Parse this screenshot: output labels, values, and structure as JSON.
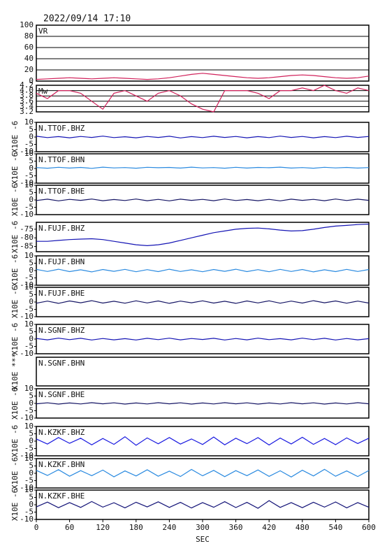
{
  "chart_data": {
    "type": "line",
    "title": "2022/09/14  17:10",
    "xlabel": "SEC",
    "xlim": [
      0,
      600
    ],
    "xticks": [
      0,
      60,
      120,
      180,
      240,
      300,
      360,
      420,
      480,
      540,
      600
    ],
    "x": [
      0,
      20,
      40,
      60,
      80,
      100,
      120,
      140,
      160,
      180,
      200,
      220,
      240,
      260,
      280,
      300,
      320,
      340,
      360,
      380,
      400,
      420,
      440,
      460,
      480,
      500,
      520,
      540,
      560,
      580,
      600
    ],
    "panels": [
      {
        "name": "VR",
        "color": "#d0205a",
        "grid": true,
        "ylim": [
          0,
          100
        ],
        "yticks": [
          0,
          20,
          40,
          60,
          80,
          100
        ],
        "values": [
          3,
          4,
          5,
          6,
          5,
          4,
          5,
          6,
          5,
          4,
          3,
          4,
          6,
          9,
          12,
          14,
          12,
          10,
          8,
          6,
          5,
          6,
          8,
          10,
          11,
          10,
          8,
          6,
          5,
          6,
          9
        ]
      },
      {
        "name": "Mw",
        "color": "#d0205a",
        "grid": true,
        "ylim": [
          3.2,
          4.2
        ],
        "yticks": [
          {
            "value": 3.2,
            "label": "3.2"
          },
          3.4,
          3.6,
          3.8,
          {
            "value": 4.0,
            "label": "4.0"
          },
          4.2
        ],
        "values": [
          3.9,
          3.7,
          4.0,
          4.0,
          3.9,
          3.6,
          3.3,
          3.9,
          4.0,
          3.8,
          3.6,
          3.9,
          4.0,
          3.8,
          3.5,
          3.3,
          3.2,
          4.0,
          4.0,
          4.0,
          3.9,
          3.7,
          4.0,
          4.0,
          4.1,
          4.0,
          4.2,
          4.0,
          3.9,
          4.1,
          4.0
        ]
      },
      {
        "name": "N.TTOF.BHZ",
        "ylabel": "X10E -6",
        "color": "#1414b4",
        "grid": false,
        "ylim": [
          -10,
          10
        ],
        "yticks": [
          -10,
          -5,
          0,
          5,
          10
        ],
        "values": [
          0.5,
          -0.4,
          0.3,
          -0.5,
          0.4,
          -0.3,
          0.6,
          -0.4,
          0.2,
          -0.5,
          0.4,
          -0.3,
          0.5,
          -0.6,
          0.3,
          -0.4,
          0.5,
          -0.3,
          0.4,
          -0.5,
          0.3,
          -0.4,
          0.6,
          -0.3,
          0.4,
          -0.5,
          0.3,
          -0.4,
          0.5,
          -0.3,
          0.4
        ]
      },
      {
        "name": "N.TTOF.BHN",
        "ylabel": "X10E -6",
        "color": "#2a8ae0",
        "grid": false,
        "ylim": [
          -10,
          10
        ],
        "yticks": [
          -10,
          -5,
          0,
          5,
          10
        ],
        "values": [
          0.6,
          0.2,
          0.8,
          0.3,
          0.7,
          0.1,
          0.9,
          0.4,
          0.6,
          0.2,
          0.8,
          0.5,
          0.7,
          0.3,
          0.9,
          0.4,
          0.6,
          0.2,
          0.8,
          0.3,
          0.7,
          0.5,
          0.9,
          0.3,
          0.6,
          0.2,
          0.8,
          0.4,
          0.7,
          0.3,
          0.6
        ]
      },
      {
        "name": "N.TTOF.BHE",
        "ylabel": "X10E -6",
        "color": "#141464",
        "grid": false,
        "ylim": [
          -10,
          10
        ],
        "yticks": [
          -10,
          -5,
          0,
          5,
          10
        ],
        "values": [
          -0.4,
          0.5,
          -0.6,
          0.4,
          -0.3,
          0.6,
          -0.5,
          0.3,
          -0.4,
          0.6,
          -0.5,
          0.4,
          -0.6,
          0.5,
          -0.3,
          0.4,
          -0.5,
          0.6,
          -0.4,
          0.3,
          -0.5,
          0.4,
          -0.6,
          0.5,
          -0.3,
          0.4,
          -0.5,
          0.6,
          -0.4,
          0.5,
          -0.3
        ]
      },
      {
        "name": "N.FUJF.BHZ",
        "ylabel": "X10E -6",
        "color": "#1414b4",
        "grid": false,
        "ylim": [
          -88,
          -71
        ],
        "yticks": [
          -85,
          -80,
          -75
        ],
        "values": [
          -82,
          -82,
          -81.5,
          -81,
          -80.7,
          -80.5,
          -81,
          -82,
          -83,
          -84,
          -84.5,
          -84,
          -83,
          -81.5,
          -80,
          -78.5,
          -77,
          -76,
          -75,
          -74.5,
          -74.3,
          -74.8,
          -75.5,
          -76,
          -75.8,
          -75,
          -74,
          -73.2,
          -72.8,
          -72.3,
          -72
        ]
      },
      {
        "name": "N.FUJF.BHN",
        "ylabel": "X10E -6",
        "color": "#2a8ae0",
        "grid": false,
        "ylim": [
          -10,
          10
        ],
        "yticks": [
          -10,
          -5,
          0,
          5,
          10
        ],
        "values": [
          0.8,
          -0.6,
          0.9,
          -0.7,
          0.5,
          -0.9,
          0.7,
          -0.5,
          0.8,
          -0.8,
          0.6,
          -0.7,
          0.9,
          -0.6,
          0.5,
          -0.8,
          0.7,
          -0.5,
          0.9,
          -0.7,
          0.6,
          -0.8,
          0.8,
          -0.6,
          0.7,
          -0.9,
          0.5,
          -0.7,
          0.8,
          -0.6,
          0.7
        ]
      },
      {
        "name": "N.FUJF.BHE",
        "ylabel": "X10E -6",
        "color": "#141464",
        "grid": false,
        "ylim": [
          -10,
          10
        ],
        "yticks": [
          -10,
          -5,
          0,
          5,
          10
        ],
        "values": [
          -0.8,
          0.6,
          -0.9,
          0.7,
          -0.5,
          0.9,
          -0.7,
          0.5,
          -0.8,
          0.8,
          -0.6,
          0.7,
          -0.9,
          0.6,
          -0.5,
          0.8,
          -0.7,
          0.5,
          -0.9,
          0.7,
          -0.6,
          0.8,
          -0.8,
          0.6,
          -0.7,
          0.9,
          -0.5,
          0.7,
          -0.8,
          0.6,
          -0.7
        ]
      },
      {
        "name": "N.SGNF.BHZ",
        "ylabel": "X10E -6",
        "color": "#1414b4",
        "grid": false,
        "ylim": [
          -10,
          10
        ],
        "yticks": [
          -10,
          -5,
          0,
          5,
          10
        ],
        "values": [
          0.4,
          -0.5,
          0.6,
          -0.4,
          0.5,
          -0.6,
          0.4,
          -0.5,
          0.3,
          -0.6,
          0.5,
          -0.4,
          0.6,
          -0.5,
          0.4,
          -0.3,
          0.5,
          -0.6,
          0.4,
          -0.5,
          0.6,
          -0.4,
          0.3,
          -0.5,
          0.6,
          -0.4,
          0.5,
          -0.6,
          0.4,
          -0.5,
          0.3
        ]
      },
      {
        "name": "N.SGNF.BHN",
        "ylabel": "X10E ***",
        "color": "#2a8ae0",
        "grid": false,
        "ylim": [
          -10,
          10
        ],
        "yticks": []
      },
      {
        "name": "N.SGNF.BHE",
        "ylabel": "X10E -6",
        "color": "#141464",
        "grid": false,
        "ylim": [
          -10,
          10
        ],
        "yticks": [
          -10,
          -5,
          0,
          5,
          10
        ],
        "values": [
          -0.3,
          0.4,
          -0.5,
          0.3,
          -0.4,
          0.5,
          -0.3,
          0.4,
          -0.5,
          0.3,
          -0.4,
          0.5,
          -0.3,
          0.4,
          -0.5,
          0.3,
          -0.4,
          0.5,
          -0.3,
          0.4,
          -0.5,
          0.3,
          -0.4,
          0.5,
          -0.3,
          0.4,
          -0.5,
          0.3,
          -0.4,
          0.5,
          -0.3
        ]
      },
      {
        "name": "N.KZKF.BHZ",
        "ylabel": "X10E -6",
        "color": "#1a1ae0",
        "grid": false,
        "ylim": [
          -10,
          10
        ],
        "yticks": [
          -10,
          -5,
          0,
          5,
          10
        ],
        "values": [
          1.5,
          -2,
          2.5,
          -1.5,
          2,
          -2.5,
          1.8,
          -2.2,
          3,
          -2.8,
          2.2,
          -1.8,
          2.5,
          -2,
          1.5,
          -2.3,
          2.8,
          -2.5,
          2,
          -1.7,
          2.4,
          -2.6,
          2.1,
          -1.9,
          2.6,
          -2.2,
          1.8,
          -2.4,
          2.2,
          -1.6,
          2
        ]
      },
      {
        "name": "N.KZKF.BHN",
        "ylabel": "X10E -6",
        "color": "#2a8ae0",
        "grid": false,
        "ylim": [
          -10,
          10
        ],
        "yticks": [
          -10,
          -5,
          0,
          5,
          10
        ],
        "values": [
          2,
          -1.5,
          2.5,
          -2,
          1.8,
          -1.6,
          2.2,
          -2.4,
          1.6,
          -1.8,
          2.4,
          -2,
          1.5,
          -2.2,
          2.6,
          -1.7,
          2,
          -2.3,
          1.8,
          -1.6,
          2.3,
          -2.1,
          1.7,
          -2.5,
          2.1,
          -1.8,
          2.7,
          -2,
          1.6,
          -2.2,
          1.9
        ]
      },
      {
        "name": "N.KZKF.BHE",
        "ylabel": "X10E -6",
        "color": "#141478",
        "grid": false,
        "ylim": [
          -10,
          10
        ],
        "yticks": [
          -10,
          -5,
          0,
          5,
          10
        ],
        "values": [
          -1.5,
          1.8,
          -2,
          1.5,
          -1.8,
          2.2,
          -1.6,
          1.4,
          -2.1,
          1.7,
          -1.5,
          2,
          -1.8,
          1.6,
          -2.2,
          1.5,
          -1.7,
          2.1,
          -1.9,
          1.6,
          -2.4,
          2.8,
          -1.8,
          1.5,
          -2,
          1.7,
          -1.6,
          1.9,
          -2.1,
          1.5,
          -1.7
        ]
      }
    ]
  }
}
